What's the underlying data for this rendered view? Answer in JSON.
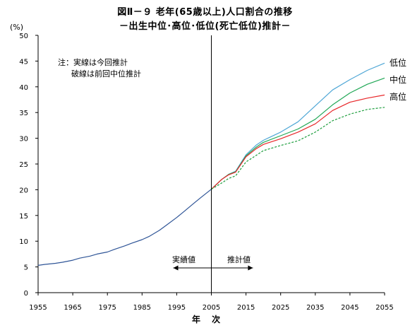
{
  "title": "図Ⅱ－９ 老年(65歳以上)人口割合の推移",
  "subtitle": "－出生中位･高位･低位(死亡低位)推計－",
  "note_line1": "注：実線は今回推計",
  "note_line2": "破線は前回中位推計",
  "zones": {
    "left": "実績値",
    "right": "推計値"
  },
  "colors": {
    "actual": "#2f5597",
    "low": "#4fa7d6",
    "mid": "#22a857",
    "high": "#e8272a",
    "previous": "#1e9e3e"
  },
  "chart_data": {
    "type": "line",
    "ylabel": "(%)",
    "xlabel": "年 次",
    "xlim": [
      1955,
      2055
    ],
    "ylim": [
      0,
      50
    ],
    "xticks": [
      1955,
      1965,
      1975,
      1985,
      1995,
      2005,
      2015,
      2025,
      2035,
      2045,
      2055
    ],
    "yticks": [
      0,
      5,
      10,
      15,
      20,
      25,
      30,
      35,
      40,
      45,
      50
    ],
    "divider_year": 2005,
    "series": [
      {
        "name": "",
        "style": "solid",
        "x": [
          1955,
          1957,
          1960,
          1962,
          1965,
          1967,
          1970,
          1972,
          1975,
          1977,
          1980,
          1982,
          1985,
          1987,
          1990,
          1992,
          1995,
          1997,
          2000,
          2002,
          2005
        ],
        "y": [
          5.3,
          5.5,
          5.7,
          5.9,
          6.3,
          6.7,
          7.1,
          7.5,
          7.9,
          8.4,
          9.1,
          9.6,
          10.3,
          10.9,
          12.1,
          13.1,
          14.6,
          15.7,
          17.4,
          18.5,
          20.1
        ]
      },
      {
        "name": "低位",
        "style": "solid",
        "x": [
          2005,
          2008,
          2010,
          2012,
          2015,
          2018,
          2020,
          2025,
          2030,
          2035,
          2040,
          2045,
          2050,
          2055
        ],
        "y": [
          20.1,
          22.0,
          23.0,
          23.6,
          26.8,
          28.7,
          29.6,
          31.2,
          33.2,
          36.3,
          39.4,
          41.4,
          43.2,
          44.6
        ]
      },
      {
        "name": "中位",
        "style": "solid",
        "x": [
          2005,
          2008,
          2010,
          2012,
          2015,
          2018,
          2020,
          2025,
          2030,
          2035,
          2040,
          2045,
          2050,
          2055
        ],
        "y": [
          20.1,
          22.0,
          23.0,
          23.5,
          26.6,
          28.3,
          29.2,
          30.5,
          31.8,
          33.7,
          36.5,
          38.8,
          40.5,
          41.7
        ]
      },
      {
        "name": "高位",
        "style": "solid",
        "x": [
          2005,
          2008,
          2010,
          2012,
          2015,
          2018,
          2020,
          2025,
          2030,
          2035,
          2040,
          2045,
          2050,
          2055
        ],
        "y": [
          20.1,
          22.0,
          22.9,
          23.4,
          26.4,
          28.0,
          28.8,
          29.9,
          31.2,
          32.8,
          35.4,
          37.0,
          37.8,
          38.4
        ]
      },
      {
        "name": "",
        "style": "dashed",
        "x": [
          2005,
          2008,
          2010,
          2012,
          2015,
          2018,
          2020,
          2025,
          2030,
          2035,
          2040,
          2045,
          2050,
          2055
        ],
        "y": [
          20.1,
          21.3,
          22.2,
          22.7,
          25.4,
          26.7,
          27.6,
          28.6,
          29.5,
          31.2,
          33.4,
          34.7,
          35.6,
          36.0
        ]
      }
    ]
  }
}
